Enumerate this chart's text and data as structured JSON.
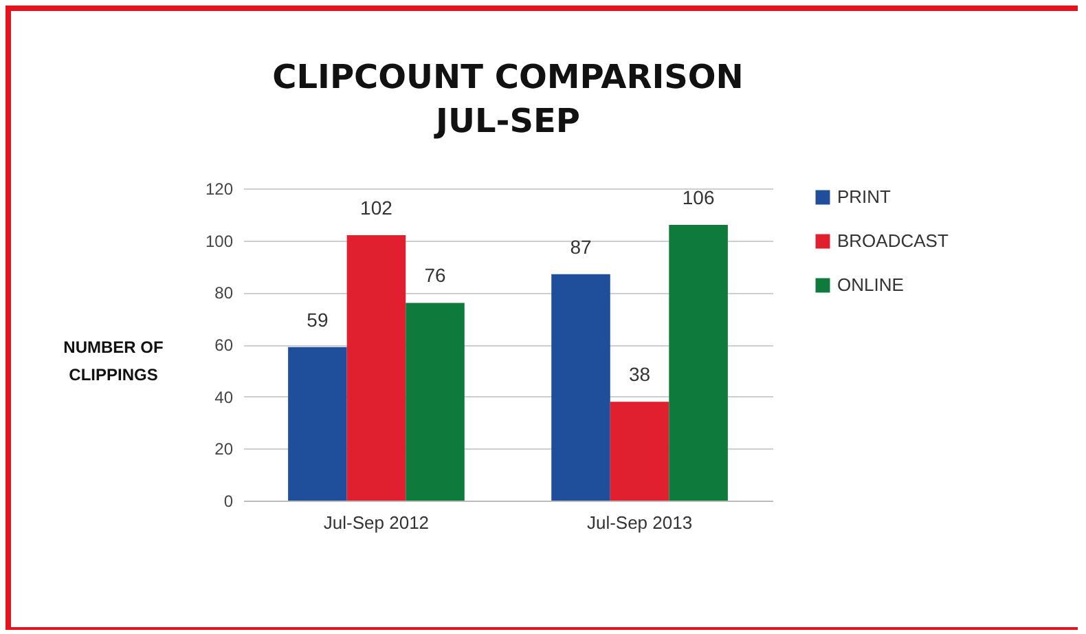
{
  "chart_data": {
    "type": "bar",
    "title": "CLIPCOUNT COMPARISON",
    "subtitle": "JUL-SEP",
    "ylabel": "NUMBER OF CLIPPINGS",
    "categories": [
      "Jul-Sep 2012",
      "Jul-Sep 2013"
    ],
    "series": [
      {
        "name": "PRINT",
        "color": "#1f4e9a",
        "values": [
          59,
          87
        ]
      },
      {
        "name": "BROADCAST",
        "color": "#e0202e",
        "values": [
          102,
          38
        ]
      },
      {
        "name": "ONLINE",
        "color": "#0e7a3c",
        "values": [
          76,
          106
        ]
      }
    ],
    "ylim": [
      0,
      120
    ],
    "yticks": [
      0,
      20,
      40,
      60,
      80,
      100,
      120
    ],
    "grid": "y",
    "legend": "right",
    "data_labels": true
  }
}
